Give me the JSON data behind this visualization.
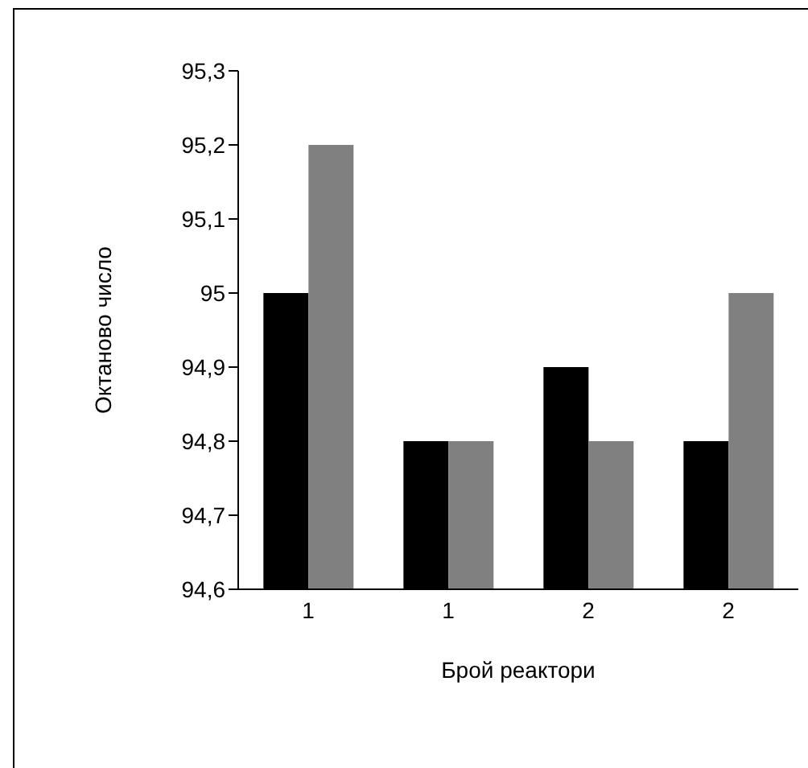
{
  "chart_data": {
    "type": "bar",
    "xlabel": "Брой реактори",
    "ylabel": "Октаново число",
    "categories": [
      "1",
      "1",
      "2",
      "2"
    ],
    "series": [
      {
        "color": "#000000",
        "values": [
          95,
          94.8,
          94.9,
          94.8
        ]
      },
      {
        "color": "#808080",
        "values": [
          95.2,
          94.8,
          94.8,
          95.0
        ]
      }
    ],
    "ylim": [
      94.6,
      95.3
    ],
    "yticks": [
      {
        "value": 94.6,
        "label": "94,6"
      },
      {
        "value": 94.7,
        "label": "94,7"
      },
      {
        "value": 94.8,
        "label": "94,8"
      },
      {
        "value": 94.9,
        "label": "94,9"
      },
      95,
      {
        "value": 95.1,
        "label": "95,1"
      },
      {
        "value": 95.2,
        "label": "95,2"
      },
      {
        "value": 95.3,
        "label": "95,3"
      }
    ],
    "grid": false,
    "legend": false
  }
}
